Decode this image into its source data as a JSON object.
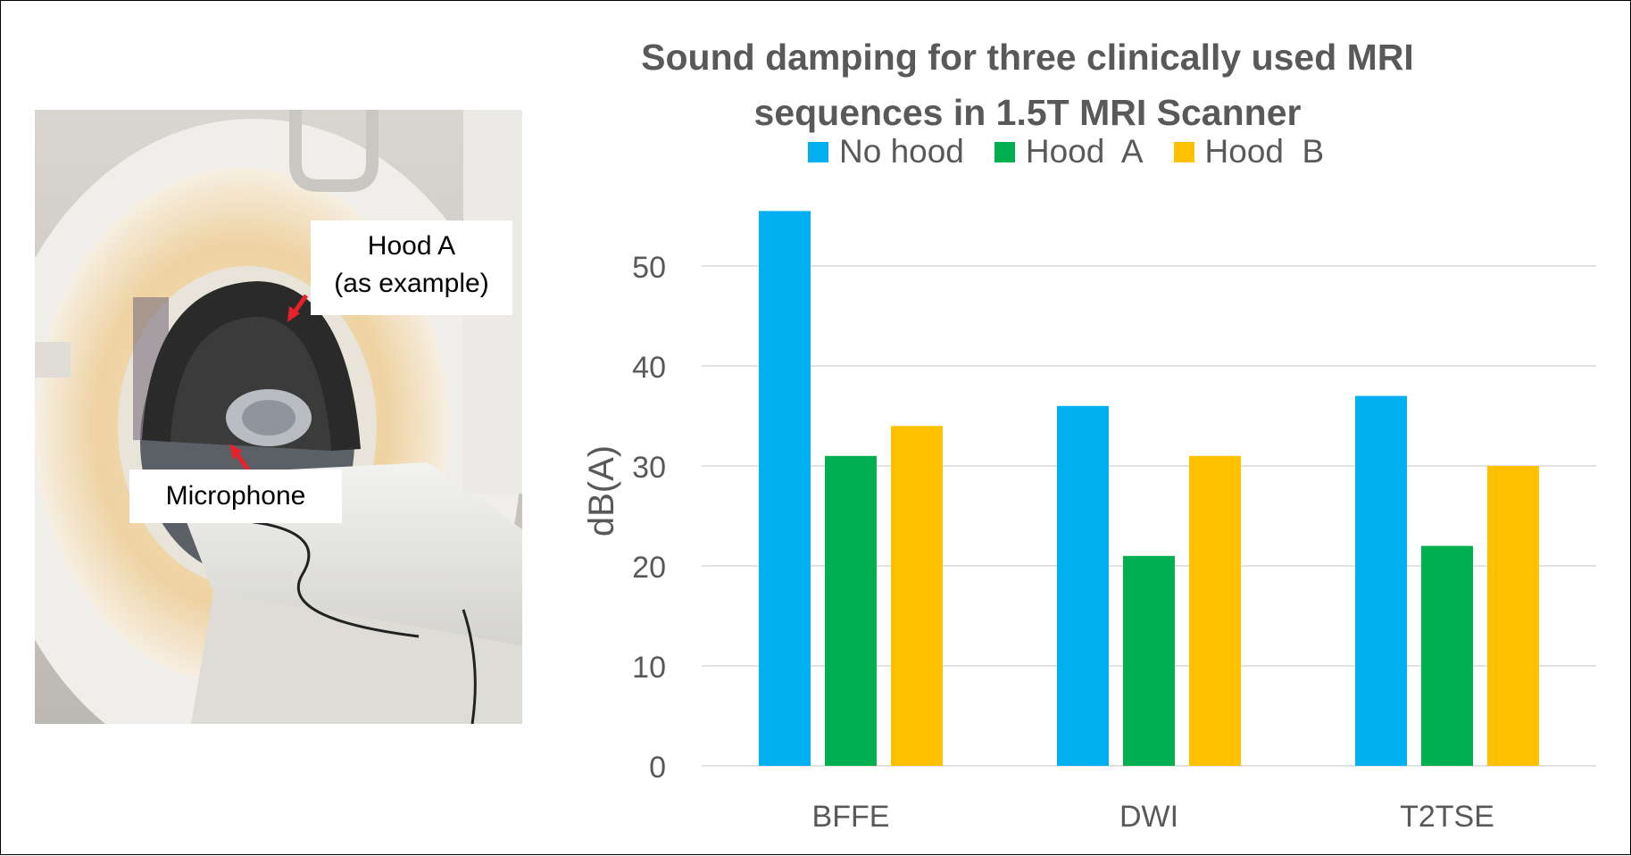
{
  "photo": {
    "callout_hood": {
      "line1": "Hood A",
      "line2": "(as example)"
    },
    "callout_microphone": "Microphone",
    "arrow_color": "#e8202a"
  },
  "chart_data": {
    "type": "bar",
    "title_line1": "Sound damping for three clinically used MRI",
    "title_line2": "sequences in 1.5T MRI Scanner",
    "categories": [
      "BFFE",
      "DWI",
      "T2TSE"
    ],
    "series": [
      {
        "name": "No hood",
        "legend_text": "No hood",
        "color": "#00b0f0",
        "values": [
          55.5,
          36,
          37
        ]
      },
      {
        "name": "Hood A",
        "legend_text": "Hood  A",
        "color": "#00b050",
        "values": [
          31,
          21,
          22
        ]
      },
      {
        "name": "Hood B",
        "legend_text": "Hood  B",
        "color": "#ffc000",
        "values": [
          34,
          31,
          30
        ]
      }
    ],
    "xlabel": "",
    "ylabel": "dB(A)",
    "ylim": [
      0,
      55.5
    ],
    "yticks": [
      0,
      10,
      20,
      30,
      40,
      50
    ],
    "grid": true,
    "legend_position": "top"
  }
}
